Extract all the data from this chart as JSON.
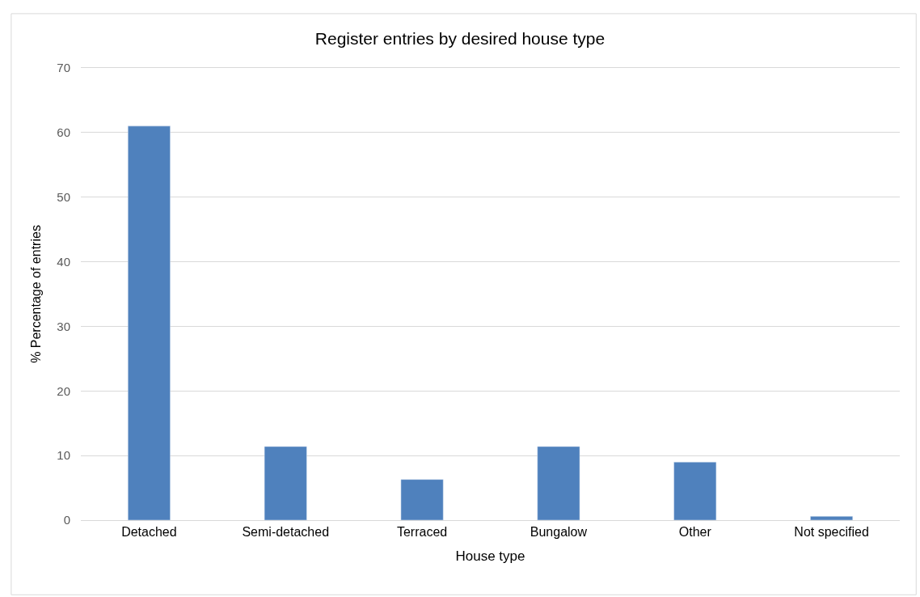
{
  "chart_data": {
    "type": "bar",
    "title": "Register entries by desired house type",
    "xlabel": "House type",
    "ylabel": "% Percentage of entries",
    "categories": [
      "Detached",
      "Semi-detached",
      "Terraced",
      "Bungalow",
      "Other",
      "Not specified"
    ],
    "values": [
      61,
      11.4,
      6.3,
      11.4,
      9.0,
      0.6
    ],
    "color": "#4f81bd",
    "ylim": [
      0,
      70
    ],
    "yticks": [
      0,
      10,
      20,
      30,
      40,
      50,
      60,
      70
    ],
    "grid": "y"
  }
}
